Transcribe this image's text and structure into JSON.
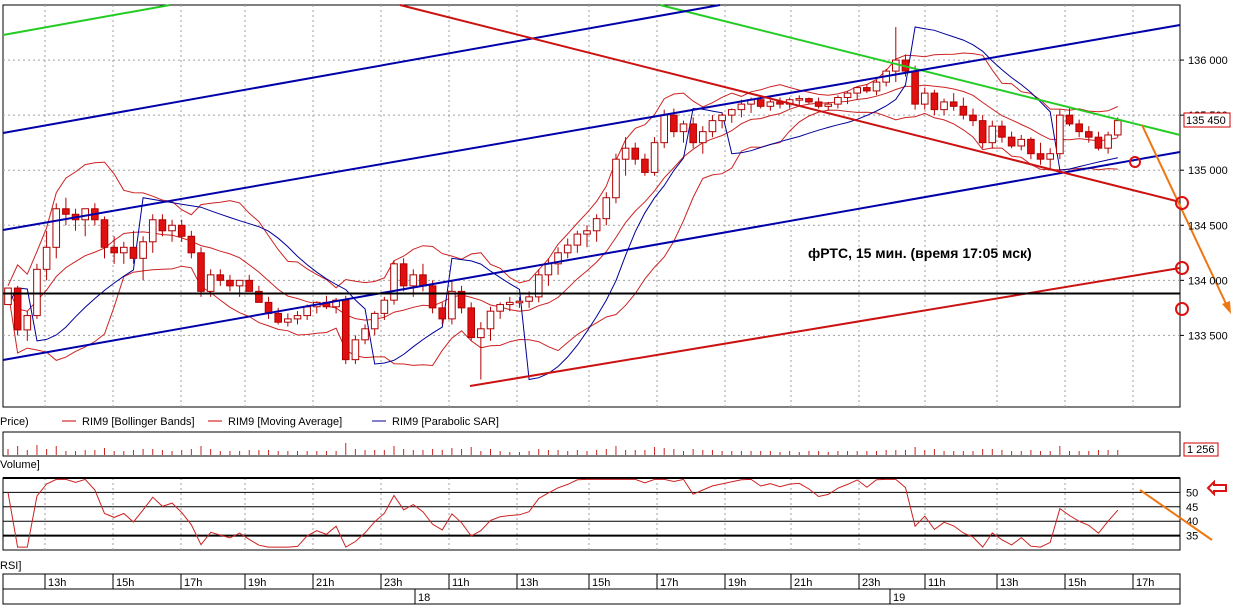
{
  "chart_data": {
    "type": "candlestick",
    "annotation": "фРТС,  15 мин. (время 17:05 мск)",
    "price_axis": {
      "ticks": [
        "136 000",
        "135 500",
        "135 000",
        "134 500",
        "134 000",
        "133 500"
      ],
      "tick_values": [
        136000,
        135500,
        135000,
        134500,
        134000,
        133500
      ],
      "ylim": [
        132850,
        136500
      ],
      "last_price_label": "135 450",
      "last_price": 135450
    },
    "legend": [
      {
        "label": "Price)",
        "color": "#000000"
      },
      {
        "label": "RIM9 [Bollinger Bands]",
        "color": "#cc0000"
      },
      {
        "label": "RIM9 [Moving Average]",
        "color": "#cc0000"
      },
      {
        "label": "RIM9 [Parabolic SAR]",
        "color": "#000099"
      }
    ],
    "volume_panel": {
      "label": "Volume]",
      "last_value_label": "1 256"
    },
    "rsi_panel": {
      "label": "RSI]",
      "ticks": [
        "50",
        "45",
        "40",
        "35"
      ],
      "tick_values": [
        50,
        45,
        40,
        35
      ],
      "ylim": [
        30,
        55
      ]
    },
    "time_axis": {
      "hour_labels": [
        "13h",
        "15h",
        "17h",
        "19h",
        "21h",
        "23h",
        "11h",
        "13h",
        "15h",
        "17h",
        "19h",
        "21h",
        "23h",
        "11h",
        "13h",
        "15h",
        "17h"
      ],
      "day_labels": [
        "18",
        "19"
      ]
    },
    "horizontal_level": 133880,
    "candles": [
      [
        133780,
        133930,
        133780,
        133930
      ],
      [
        133930,
        133950,
        133500,
        133550
      ],
      [
        133550,
        133720,
        133450,
        133680
      ],
      [
        133680,
        134150,
        133650,
        134100
      ],
      [
        134100,
        134450,
        134000,
        134300
      ],
      [
        134300,
        134700,
        134200,
        134650
      ],
      [
        134650,
        134750,
        134500,
        134600
      ],
      [
        134600,
        134650,
        134450,
        134550
      ],
      [
        134550,
        134650,
        134400,
        134650
      ],
      [
        134650,
        134700,
        134500,
        134550
      ],
      [
        134550,
        134580,
        134200,
        134300
      ],
      [
        134300,
        134400,
        134150,
        134250
      ],
      [
        134250,
        134350,
        134150,
        134300
      ],
      [
        134300,
        134450,
        134150,
        134200
      ],
      [
        134200,
        134400,
        134000,
        134350
      ],
      [
        134350,
        134600,
        134250,
        134550
      ],
      [
        134550,
        134600,
        134400,
        134450
      ],
      [
        134450,
        134550,
        134350,
        134500
      ],
      [
        134500,
        134550,
        134350,
        134400
      ],
      [
        134400,
        134450,
        134200,
        134250
      ],
      [
        134250,
        134300,
        133850,
        133900
      ],
      [
        133900,
        134100,
        133850,
        134050
      ],
      [
        134050,
        134100,
        133950,
        134000
      ],
      [
        134000,
        134050,
        133900,
        133950
      ],
      [
        133950,
        134000,
        133850,
        134000
      ],
      [
        134000,
        134050,
        133900,
        133900
      ],
      [
        133900,
        133950,
        133800,
        133800
      ],
      [
        133800,
        133850,
        133650,
        133700
      ],
      [
        133700,
        133750,
        133600,
        133620
      ],
      [
        133620,
        133700,
        133580,
        133650
      ],
      [
        133650,
        133720,
        133600,
        133680
      ],
      [
        133680,
        133780,
        133640,
        133760
      ],
      [
        133760,
        133810,
        133700,
        133800
      ],
      [
        133800,
        133860,
        133740,
        133760
      ],
      [
        133760,
        133840,
        133700,
        133820
      ],
      [
        133820,
        133860,
        133240,
        133280
      ],
      [
        133280,
        133500,
        133240,
        133460
      ],
      [
        133460,
        133600,
        133420,
        133560
      ],
      [
        133560,
        133720,
        133500,
        133700
      ],
      [
        133700,
        133850,
        133640,
        133820
      ],
      [
        133820,
        134180,
        133780,
        134150
      ],
      [
        134150,
        134200,
        133900,
        133950
      ],
      [
        133950,
        134100,
        133850,
        134050
      ],
      [
        134050,
        134150,
        133900,
        133950
      ],
      [
        133950,
        134000,
        133700,
        133750
      ],
      [
        133750,
        133800,
        133600,
        133650
      ],
      [
        133650,
        134000,
        133600,
        133900
      ],
      [
        133900,
        133950,
        133700,
        133750
      ],
      [
        133750,
        133800,
        133450,
        133480
      ],
      [
        133480,
        133620,
        133100,
        133560
      ],
      [
        133560,
        133760,
        133450,
        133720
      ],
      [
        133720,
        133800,
        133650,
        133780
      ],
      [
        133780,
        133850,
        133720,
        133800
      ],
      [
        133800,
        133850,
        133750,
        133810
      ],
      [
        133810,
        133900,
        133750,
        133850
      ],
      [
        133850,
        134100,
        133800,
        134050
      ],
      [
        134050,
        134200,
        133950,
        134150
      ],
      [
        134150,
        134300,
        134050,
        134250
      ],
      [
        134250,
        134380,
        134200,
        134320
      ],
      [
        134320,
        134450,
        134250,
        134420
      ],
      [
        134420,
        134500,
        134300,
        134450
      ],
      [
        134450,
        134600,
        134350,
        134560
      ],
      [
        134560,
        134800,
        134500,
        134750
      ],
      [
        134750,
        135150,
        134700,
        135100
      ],
      [
        135100,
        135300,
        134950,
        135200
      ],
      [
        135200,
        135250,
        135050,
        135100
      ],
      [
        135100,
        135150,
        134950,
        134980
      ],
      [
        134980,
        135300,
        134950,
        135250
      ],
      [
        135250,
        135550,
        135200,
        135500
      ],
      [
        135500,
        135560,
        135300,
        135350
      ],
      [
        135350,
        135450,
        135250,
        135420
      ],
      [
        135420,
        135480,
        135200,
        135250
      ],
      [
        135250,
        135400,
        135150,
        135350
      ],
      [
        135350,
        135500,
        135300,
        135450
      ],
      [
        135450,
        135520,
        135380,
        135500
      ],
      [
        135500,
        135560,
        135430,
        135550
      ],
      [
        135550,
        135640,
        135480,
        135600
      ],
      [
        135600,
        135660,
        135520,
        135640
      ],
      [
        135640,
        135660,
        135560,
        135580
      ],
      [
        135580,
        135640,
        135540,
        135620
      ],
      [
        135620,
        135660,
        135560,
        135600
      ],
      [
        135600,
        135660,
        135560,
        135640
      ],
      [
        135640,
        135680,
        135580,
        135650
      ],
      [
        135650,
        135660,
        135600,
        135620
      ],
      [
        135620,
        135660,
        135560,
        135580
      ],
      [
        135580,
        135620,
        135540,
        135600
      ],
      [
        135600,
        135680,
        135560,
        135660
      ],
      [
        135660,
        135720,
        135600,
        135700
      ],
      [
        135700,
        135760,
        135640,
        135750
      ],
      [
        135750,
        135780,
        135700,
        135720
      ],
      [
        135720,
        135820,
        135680,
        135800
      ],
      [
        135800,
        135920,
        135760,
        135900
      ],
      [
        135900,
        136300,
        135800,
        136000
      ],
      [
        136000,
        136050,
        135850,
        135900
      ],
      [
        135900,
        135950,
        135550,
        135600
      ],
      [
        135600,
        135750,
        135550,
        135700
      ],
      [
        135700,
        135730,
        135500,
        135550
      ],
      [
        135550,
        135650,
        135500,
        135620
      ],
      [
        135620,
        135700,
        135540,
        135580
      ],
      [
        135580,
        135660,
        135460,
        135500
      ],
      [
        135500,
        135560,
        135400,
        135450
      ],
      [
        135450,
        135500,
        135200,
        135250
      ],
      [
        135250,
        135450,
        135200,
        135400
      ],
      [
        135400,
        135450,
        135250,
        135300
      ],
      [
        135300,
        135350,
        135200,
        135220
      ],
      [
        135220,
        135320,
        135180,
        135280
      ],
      [
        135280,
        135300,
        135100,
        135150
      ],
      [
        135150,
        135250,
        135050,
        135100
      ],
      [
        135100,
        135200,
        135000,
        135150
      ],
      [
        135150,
        135550,
        135100,
        135500
      ],
      [
        135500,
        135560,
        135400,
        135420
      ],
      [
        135420,
        135460,
        135300,
        135350
      ],
      [
        135350,
        135400,
        135250,
        135300
      ],
      [
        135300,
        135350,
        135180,
        135200
      ],
      [
        135200,
        135350,
        135150,
        135320
      ],
      [
        135320,
        135480,
        135300,
        135450
      ]
    ]
  }
}
